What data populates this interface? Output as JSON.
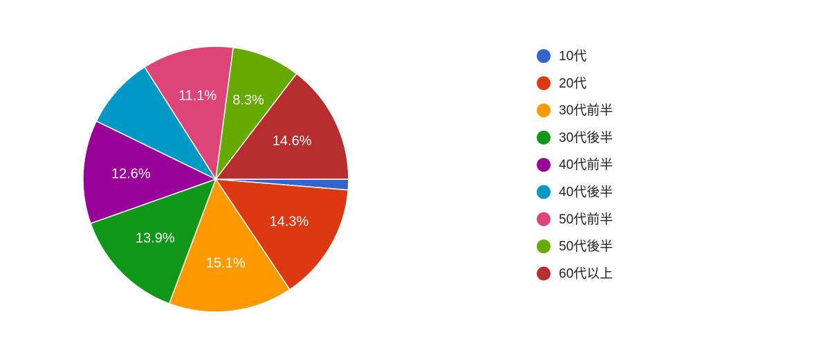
{
  "chart_data": {
    "type": "pie",
    "categories": [
      "10代",
      "20代",
      "30代前半",
      "30代後半",
      "40代前半",
      "40代後半",
      "50代前半",
      "50代後半",
      "60代以上"
    ],
    "values": [
      1.3,
      14.3,
      15.1,
      13.9,
      12.6,
      8.8,
      11.1,
      8.3,
      14.6
    ],
    "value_labels": [
      null,
      "14.3%",
      "15.1%",
      "13.9%",
      "12.6%",
      null,
      "11.1%",
      "8.3%",
      "14.6%"
    ],
    "colors": [
      "#3366cc",
      "#dc3912",
      "#ff9900",
      "#109618",
      "#990099",
      "#0099c6",
      "#dd4477",
      "#66aa00",
      "#b82e2e"
    ],
    "legend": "right"
  }
}
